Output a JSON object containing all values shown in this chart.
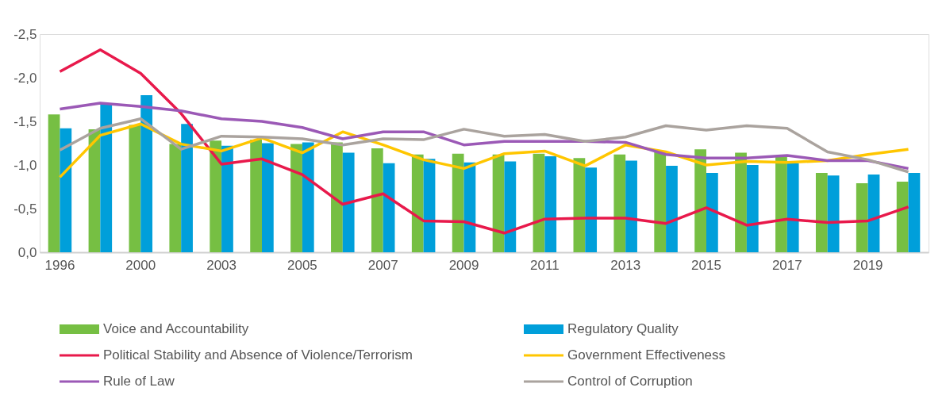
{
  "chart_data": {
    "type": "bar",
    "categories": [
      "1996",
      null,
      "2000",
      null,
      "2003",
      null,
      "2005",
      null,
      "2007",
      null,
      "2009",
      null,
      "2011",
      null,
      "2013",
      null,
      "2015",
      null,
      "2017",
      null,
      "2019",
      null
    ],
    "series": [
      {
        "name": "Voice and Accountability",
        "color": "#76bf43",
        "values": [
          -1.58,
          -1.41,
          -1.46,
          -1.24,
          -1.28,
          -1.29,
          -1.24,
          -1.26,
          -1.19,
          -1.12,
          -1.13,
          -1.12,
          -1.13,
          -1.08,
          -1.12,
          -1.15,
          -1.18,
          -1.14,
          -1.09,
          -0.91,
          -0.79,
          -0.81
        ]
      },
      {
        "name": "Regulatory Quality",
        "color": "#009fda",
        "values": [
          -1.42,
          -1.7,
          -1.8,
          -1.47,
          -1.22,
          -1.25,
          -1.26,
          -1.14,
          -1.02,
          -1.07,
          -1.03,
          -1.04,
          -1.1,
          -0.97,
          -1.05,
          -0.99,
          -0.91,
          -1.0,
          -1.02,
          -0.88,
          -0.89,
          -0.91
        ]
      },
      {
        "name": "Political Stability and Absence of Violence/Terrorism",
        "type": "line",
        "color": "#e8194b",
        "values": [
          -2.07,
          -2.32,
          -2.05,
          -1.59,
          -1.01,
          -1.07,
          -0.89,
          -0.55,
          -0.67,
          -0.36,
          -0.35,
          -0.22,
          -0.38,
          -0.39,
          -0.39,
          -0.33,
          -0.51,
          -0.31,
          -0.38,
          -0.34,
          -0.36,
          -0.52
        ]
      },
      {
        "name": "Government Effectiveness",
        "type": "line",
        "color": "#ffc600",
        "values": [
          -0.86,
          -1.34,
          -1.47,
          -1.24,
          -1.16,
          -1.31,
          -1.14,
          -1.38,
          -1.23,
          -1.06,
          -0.96,
          -1.13,
          -1.16,
          -0.99,
          -1.23,
          -1.15,
          -1.0,
          -1.04,
          -1.03,
          -1.05,
          -1.12,
          -1.18
        ]
      },
      {
        "name": "Rule of Law",
        "type": "line",
        "color": "#9b59b6",
        "values": [
          -1.64,
          -1.71,
          -1.67,
          -1.62,
          -1.53,
          -1.5,
          -1.43,
          -1.3,
          -1.38,
          -1.38,
          -1.23,
          -1.27,
          -1.27,
          -1.27,
          -1.26,
          -1.12,
          -1.08,
          -1.08,
          -1.11,
          -1.05,
          -1.05,
          -0.96
        ]
      },
      {
        "name": "Control of Corruption",
        "type": "line",
        "color": "#aaa39e",
        "values": [
          -1.17,
          -1.42,
          -1.53,
          -1.18,
          -1.33,
          -1.32,
          -1.3,
          -1.23,
          -1.3,
          -1.29,
          -1.41,
          -1.33,
          -1.35,
          -1.27,
          -1.32,
          -1.45,
          -1.4,
          -1.45,
          -1.42,
          -1.15,
          -1.06,
          -0.92
        ]
      }
    ],
    "ylim": [
      0,
      -2.5
    ],
    "yticks": [
      {
        "value": 0,
        "label": "0,0"
      },
      {
        "value": -0.5,
        "label": "-0,5"
      },
      {
        "value": -1.0,
        "label": "-1,0"
      },
      {
        "value": -1.5,
        "label": "-1,5"
      },
      {
        "value": -2.0,
        "label": "-2,0"
      },
      {
        "value": -2.5,
        "label": "-2,5"
      }
    ],
    "grid": false,
    "legend": "bottom"
  }
}
